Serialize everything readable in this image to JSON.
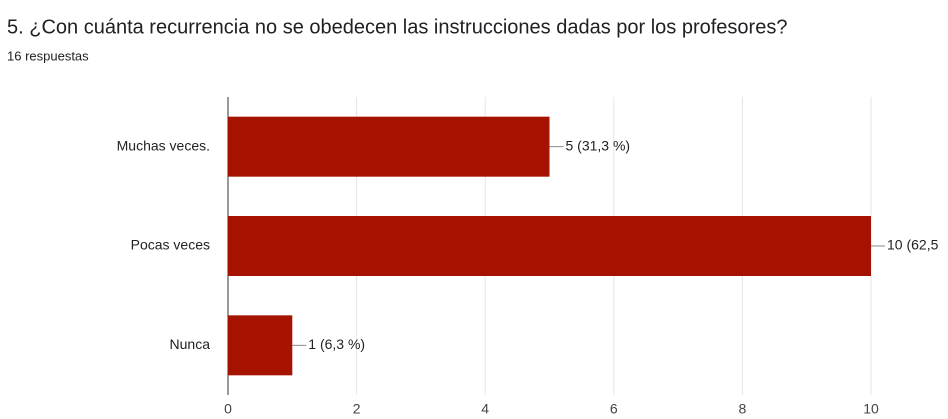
{
  "chart_data": {
    "type": "hbar",
    "title": "5. ¿Con cuánta recurrencia no se obedecen las instrucciones dadas por los profesores?",
    "subtitle": "16 respuestas",
    "categories": [
      "Muchas veces.",
      "Pocas veces",
      "Nunca"
    ],
    "values": [
      5,
      10,
      1
    ],
    "value_labels": [
      "5 (31,3 %)",
      "10 (62,5",
      "1 (6,3 %)"
    ],
    "color": "#a61200",
    "xlim": [
      0,
      10
    ],
    "xticks": [
      0,
      2,
      4,
      6,
      8,
      10
    ],
    "grid": true
  }
}
